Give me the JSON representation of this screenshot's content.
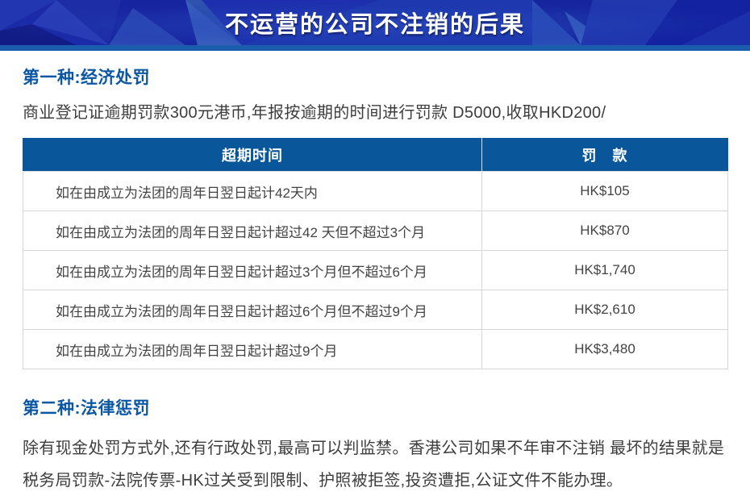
{
  "banner": {
    "title": "不运营的公司不注销的后果"
  },
  "sections": [
    {
      "heading": "第一种:经济处罚",
      "paragraph": "商业登记证逾期罚款300元港币,年报按逾期的时间进行罚款 D5000,收取HKD200/"
    },
    {
      "heading": "第二种:法律惩罚",
      "paragraph": "除有现金处罚方式外,还有行政处罚,最高可以判监禁。香港公司如果不年审不注销 最坏的结果就是税务局罚款-法院传票-HK过关受到限制、护照被拒签,投资遭拒,公证文件不能办理。"
    }
  ],
  "table": {
    "headers": [
      "超期时间",
      "罚　款"
    ],
    "rows": [
      {
        "period": "如在由成立为法团的周年日翌日起计42天内",
        "fine": "HK$105"
      },
      {
        "period": "如在由成立为法团的周年日翌日起计超过42 天但不超过3个月",
        "fine": "HK$870"
      },
      {
        "period": "如在由成立为法团的周年日翌日起计超过3个月但不超过6个月",
        "fine": "HK$1,740"
      },
      {
        "period": "如在由成立为法团的周年日翌日起计超过6个月但不超过9个月",
        "fine": "HK$2,610"
      },
      {
        "period": "如在由成立为法团的周年日翌日起计超过9个月",
        "fine": "HK$3,480"
      }
    ]
  },
  "colors": {
    "banner_base": "#1b2aa8",
    "banner_strip": "#1a5dad",
    "table_header_bg": "#09569b",
    "section_heading": "#0b57a3",
    "body_text": "#3d3d3d",
    "table_border": "#d6d6d6"
  }
}
